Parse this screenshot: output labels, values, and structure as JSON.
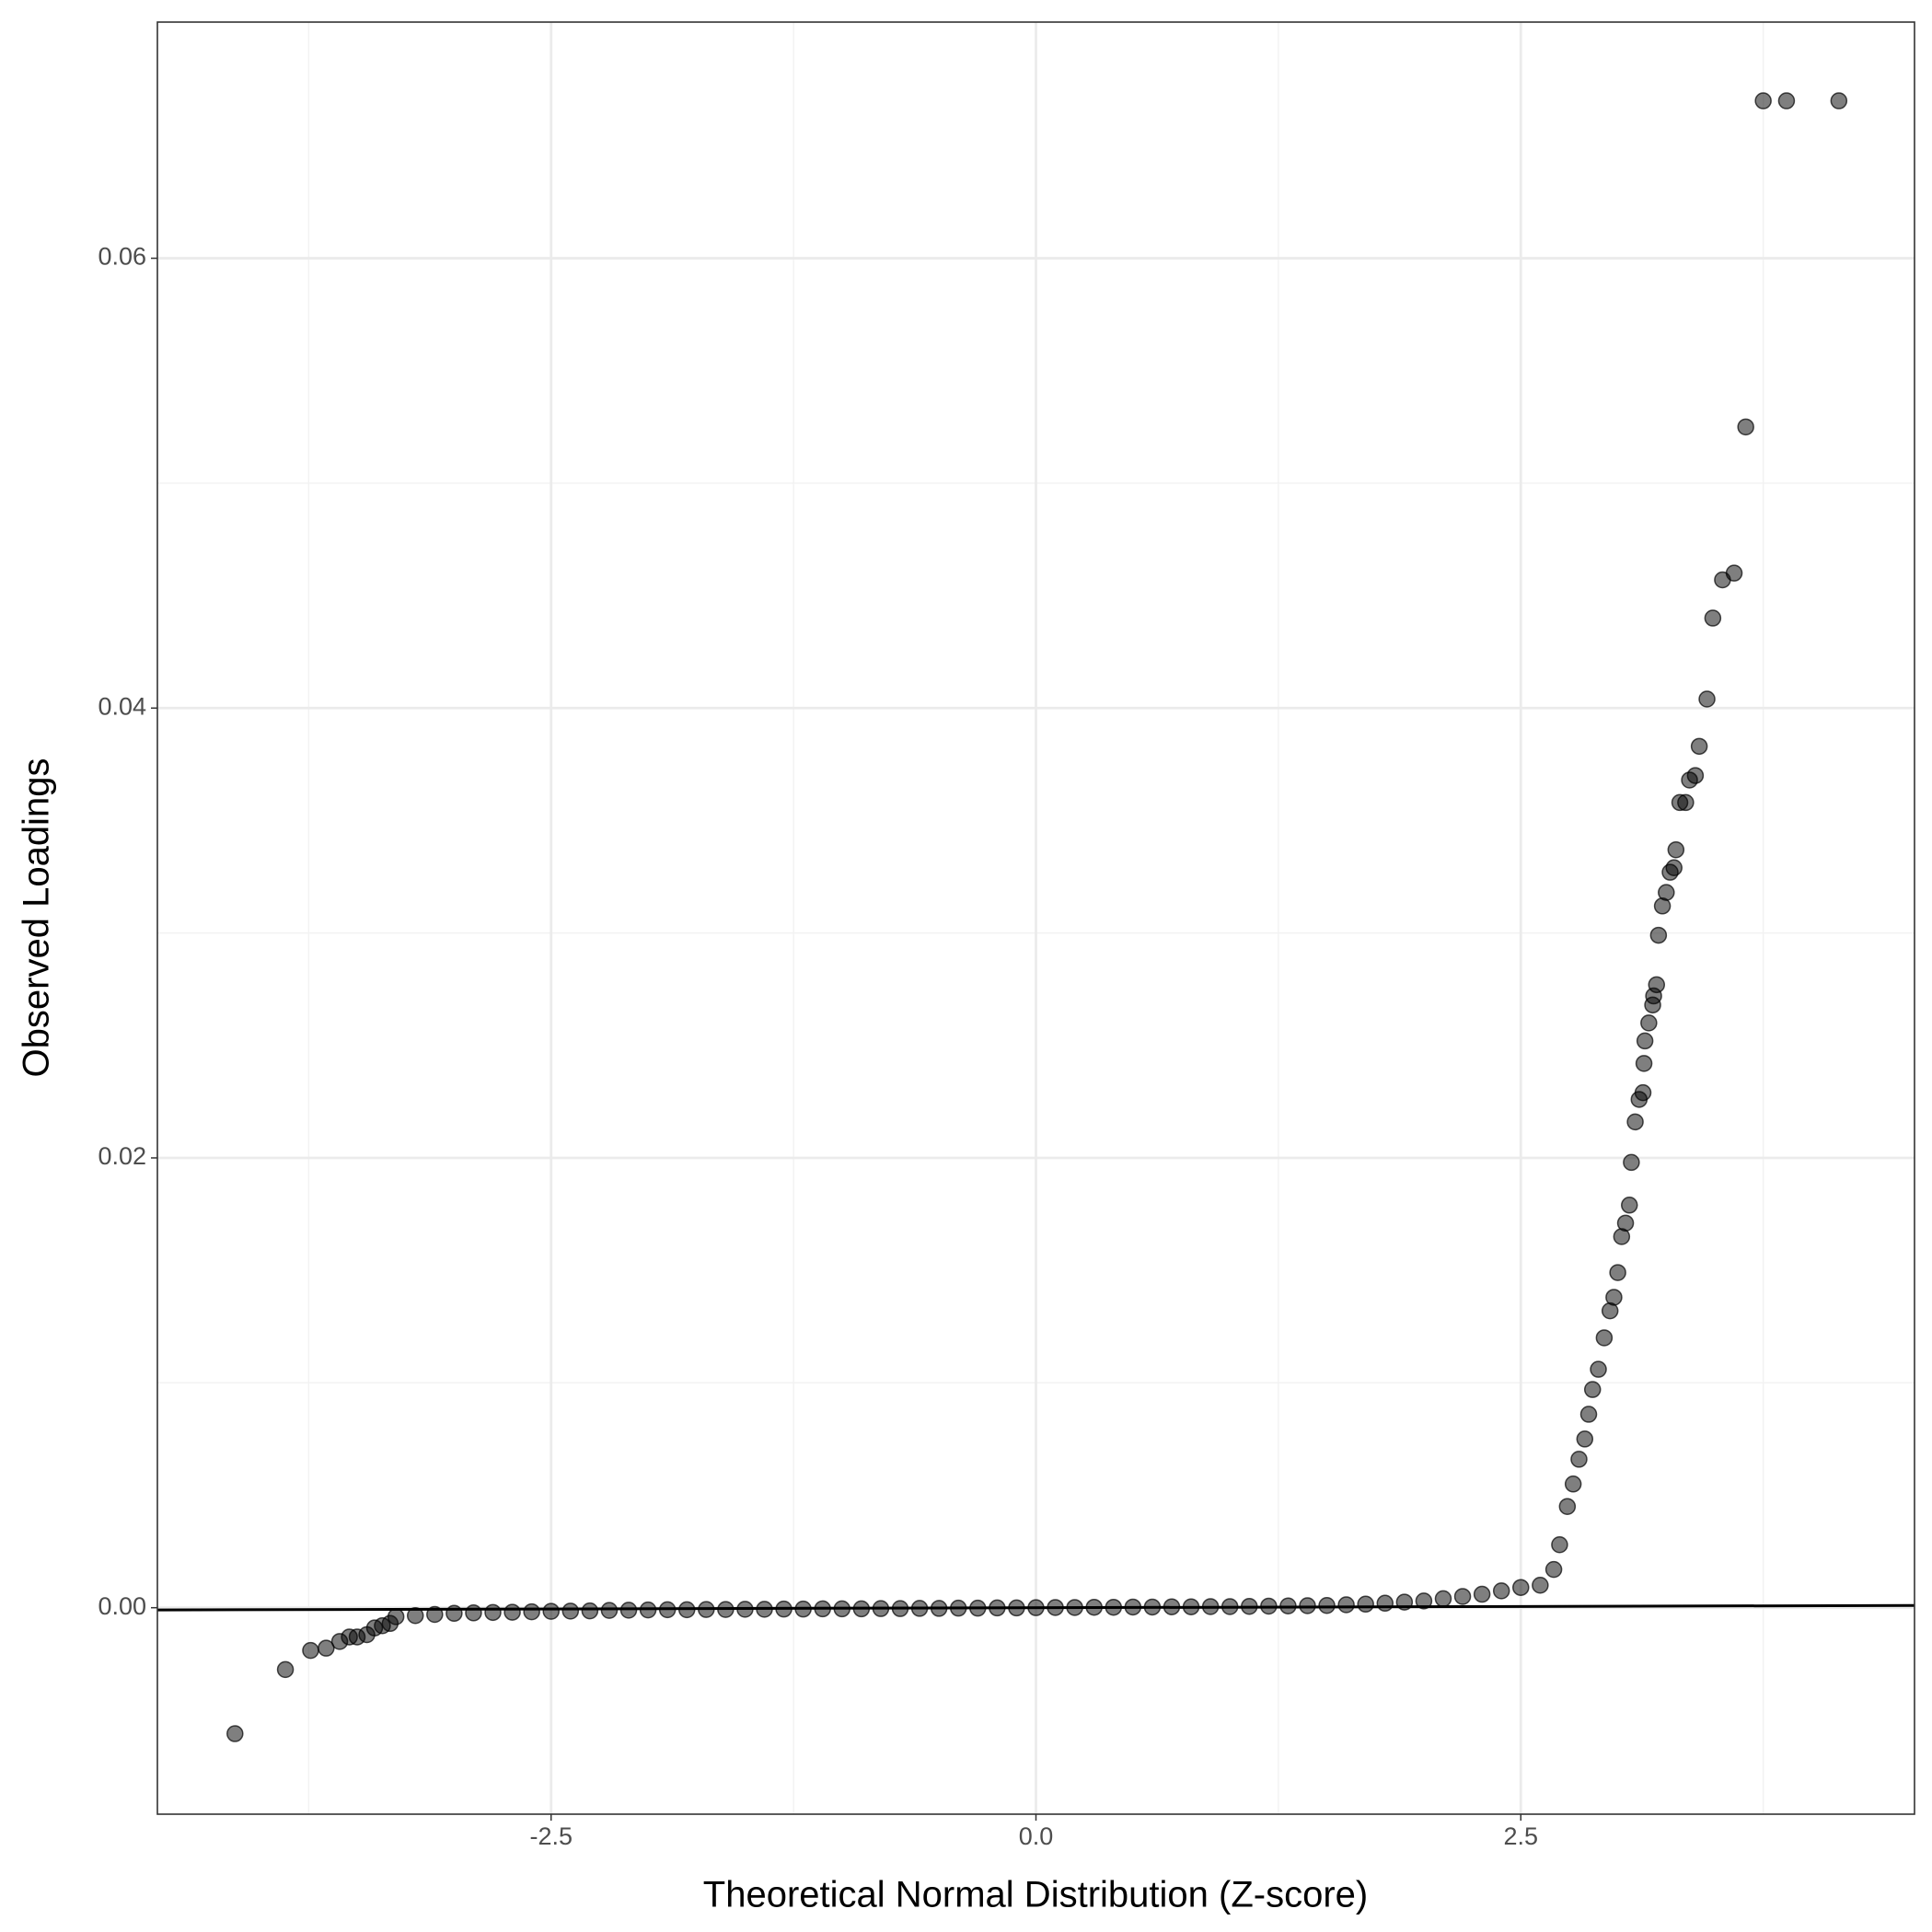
{
  "chart_data": {
    "type": "scatter",
    "x_label": "Theoretical Normal Distribution (Z-score)",
    "y_label": "Observed Loadings",
    "xlim": [
      -4.53,
      4.53
    ],
    "ylim": [
      -0.00918,
      0.0705
    ],
    "xticks": [
      -2.5,
      {
        "value": 0,
        "label": "0.0"
      },
      2.5
    ],
    "yticks": [
      {
        "value": 0,
        "label": "0.00"
      },
      0.02,
      0.04,
      0.06
    ],
    "minor_xticks": [
      -3.75,
      -1.25,
      1.25,
      3.75
    ],
    "minor_yticks": [
      0.01,
      0.03,
      0.05
    ],
    "grid": true,
    "color": "#000000",
    "opacity": 0.5,
    "line_color": "#000000",
    "x": [
      -4.13,
      -3.87,
      -3.74,
      -3.66,
      -3.59,
      -3.54,
      -3.5,
      -3.45,
      -3.41,
      -3.37,
      -3.33,
      -3.3,
      -3.2,
      -3.1,
      -3.0,
      -2.9,
      -2.8,
      -2.7,
      -2.6,
      -2.5,
      -2.4,
      -2.3,
      -2.2,
      -2.1,
      -2.0,
      -1.9,
      -1.8,
      -1.7,
      -1.6,
      -1.5,
      -1.4,
      -1.3,
      -1.2,
      -1.1,
      -1.0,
      -0.9,
      -0.8,
      -0.7,
      -0.6,
      -0.5,
      -0.4,
      -0.3,
      -0.2,
      -0.1,
      0,
      0.1,
      0.2,
      0.3,
      0.4,
      0.5,
      0.6,
      0.7,
      0.8,
      0.9,
      1.0,
      1.1,
      1.2,
      1.3,
      1.4,
      1.5,
      1.6,
      1.7,
      1.8,
      1.9,
      2.0,
      2.1,
      2.2,
      2.3,
      2.4,
      2.5,
      2.6,
      2.67,
      2.7,
      2.74,
      2.77,
      2.8,
      2.83,
      2.85,
      2.87,
      2.9,
      2.93,
      2.96,
      2.98,
      3.0,
      3.02,
      3.04,
      3.06,
      3.07,
      3.09,
      3.11,
      3.13,
      3.135,
      3.14,
      3.16,
      3.18,
      3.185,
      3.2,
      3.21,
      3.23,
      3.25,
      3.27,
      3.29,
      3.3,
      3.32,
      3.35,
      3.37,
      3.4,
      3.42,
      3.46,
      3.49,
      3.54,
      3.6,
      3.66,
      3.75,
      3.87,
      4.14
    ],
    "y": [
      -0.0056,
      -0.00275,
      -0.0019,
      -0.0018,
      -0.0015,
      -0.0013,
      -0.0013,
      -0.0012,
      -0.0009,
      -0.0008,
      -0.0007,
      -0.0004,
      -0.00035,
      -0.0003,
      -0.00025,
      -0.00023,
      -0.00021,
      -0.0002,
      -0.00018,
      -0.00016,
      -0.00015,
      -0.00014,
      -0.00012,
      -0.00011,
      -0.0001,
      -9e-05,
      -9e-05,
      -8e-05,
      -8e-05,
      -7e-05,
      -7e-05,
      -6e-05,
      -6e-05,
      -5e-05,
      -5e-05,
      -5e-05,
      -4e-05,
      -4e-05,
      -3e-05,
      -3e-05,
      -2e-05,
      -2e-05,
      -1e-05,
      -1e-05,
      0,
      1e-05,
      1e-05,
      2e-05,
      2e-05,
      3e-05,
      3e-05,
      4e-05,
      4e-05,
      5e-05,
      5e-05,
      6e-05,
      7e-05,
      8e-05,
      9e-05,
      0.0001,
      0.00013,
      0.00016,
      0.0002,
      0.00025,
      0.0003,
      0.0004,
      0.0005,
      0.0006,
      0.00075,
      0.0009,
      0.001,
      0.0017,
      0.0028,
      0.0045,
      0.0055,
      0.0066,
      0.0075,
      0.0086,
      0.0097,
      0.0106,
      0.012,
      0.0132,
      0.0138,
      0.0149,
      0.0165,
      0.0171,
      0.0179,
      0.0198,
      0.0216,
      0.0226,
      0.0229,
      0.0242,
      0.0252,
      0.026,
      0.0268,
      0.0272,
      0.0277,
      0.0299,
      0.0312,
      0.0318,
      0.0327,
      0.0329,
      0.0337,
      0.0358,
      0.0358,
      0.0368,
      0.037,
      0.0383,
      0.0404,
      0.044,
      0.0457,
      0.046,
      0.0525,
      0.067,
      0.067,
      0.067
    ],
    "reference_line": {
      "x": [
        -4.53,
        4.53
      ],
      "y": [
        -0.0001,
        0.0001
      ]
    }
  }
}
